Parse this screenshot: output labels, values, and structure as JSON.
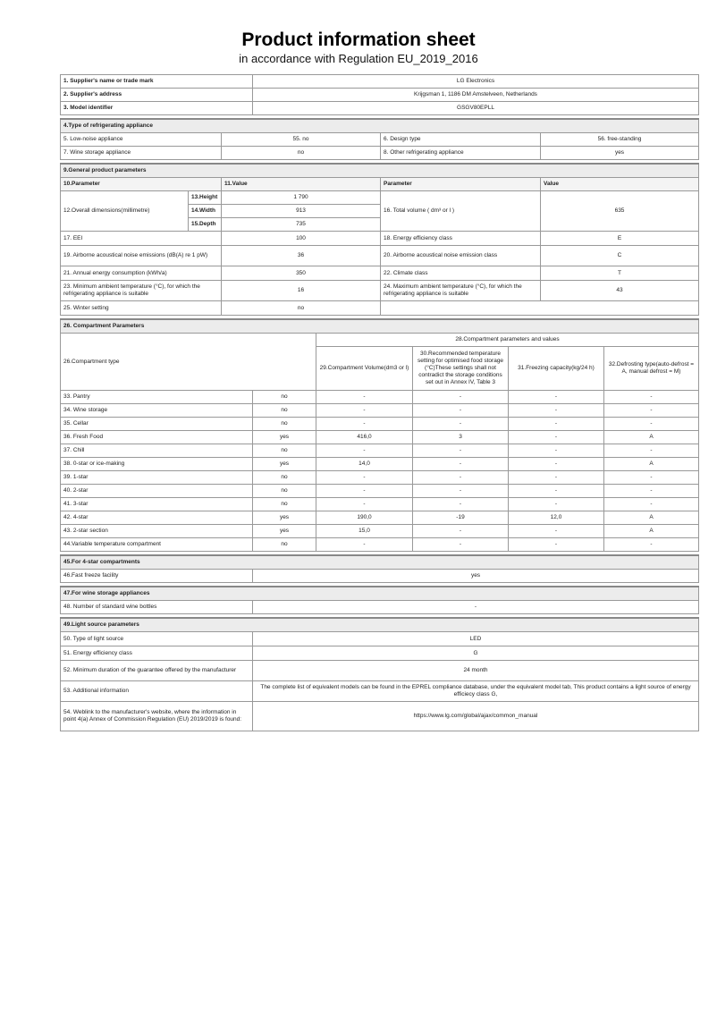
{
  "title": "Product information sheet",
  "subtitle": "in accordance with Regulation EU_2019_2016",
  "supplier": [
    {
      "label": "1. Supplier's name or trade mark",
      "value": "LG Electronics"
    },
    {
      "label": "2. Supplier's address",
      "value": "Krijgsman 1, 1186 DM Amstelveen, Netherlands"
    },
    {
      "label": "3. Model identifier",
      "value": "GSGV80EPLL"
    }
  ],
  "type_section": {
    "title": "4.Type of refrigerating appliance",
    "rows": [
      [
        "5. Low-noise appliance",
        "55. no",
        "6. Design type",
        "56. free-standing"
      ],
      [
        "7. Wine storage appliance",
        "no",
        "8. Other refrigerating appliance",
        "yes"
      ]
    ]
  },
  "general": {
    "title": "9.General product parameters",
    "headers": [
      "10.Parameter",
      "11.Value",
      "Parameter",
      "Value"
    ],
    "dims_label": "12.Overall dimensions(millimetre)",
    "dims": [
      [
        "13.Height",
        "1 790"
      ],
      [
        "14.Width",
        "913"
      ],
      [
        "15.Depth",
        "735"
      ]
    ],
    "volume_label": "16. Total volume ( dm³ or l )",
    "volume_value": "635",
    "rows": [
      [
        "17. EEI",
        "100",
        "18. Energy efficiency class",
        "E"
      ],
      [
        "19. Airborne acoustical noise emissions (dB(A) re 1 pW)",
        "36",
        "20. Airborne acoustical noise emission class",
        "C"
      ],
      [
        "21. Annual energy consumption (kWh/a)",
        "350",
        "22. Climate class",
        "T"
      ],
      [
        "23. Minimum ambient temperature (°C), for which the refrigerating appliance is suitable",
        "16",
        "24. Maximum ambient temperature (°C), for which the refrigerating appliance is suitable",
        "43"
      ],
      [
        "25. Winter setting",
        "no",
        "",
        ""
      ]
    ]
  },
  "compartments": {
    "title": "26. Compartment Parameters",
    "type_label": "26.Compartment type",
    "group_label": "28.Compartment parameters and values",
    "headers": [
      "29.Compartment Volume(dm3 or l)",
      "30.Recommended temperature setting for optimised food storage (°C)These settings shall not contradict the storage conditions set out in Annex IV, Table 3",
      "31.Freezing capacity(kg/24 h)",
      "32.Defrosting type(auto-defrost = A, manual defrost = M)"
    ],
    "rows": [
      [
        "33. Pantry",
        "no",
        "-",
        "-",
        "-",
        "-"
      ],
      [
        "34. Wine storage",
        "no",
        "-",
        "-",
        "-",
        "-"
      ],
      [
        "35. Cellar",
        "no",
        "-",
        "-",
        "-",
        "-"
      ],
      [
        "36. Fresh Food",
        "yes",
        "416,0",
        "3",
        "-",
        "A"
      ],
      [
        "37. Chill",
        "no",
        "-",
        "-",
        "-",
        "-"
      ],
      [
        "38. 0-star or ice-making",
        "yes",
        "14,0",
        "-",
        "-",
        "A"
      ],
      [
        "39. 1-star",
        "no",
        "-",
        "-",
        "-",
        "-"
      ],
      [
        "40. 2-star",
        "no",
        "-",
        "-",
        "-",
        "-"
      ],
      [
        "41. 3-star",
        "no",
        "-",
        "-",
        "-",
        "-"
      ],
      [
        "42. 4-star",
        "yes",
        "190,0",
        "-19",
        "12,0",
        "A"
      ],
      [
        "43. 2-star section",
        "yes",
        "15,0",
        "-",
        "-",
        "A"
      ],
      [
        "44.Variable temperature compartment",
        "no",
        "-",
        "-",
        "-",
        "-"
      ]
    ]
  },
  "misc": [
    {
      "section": "45.For 4-star compartments",
      "label": "46.Fast freeze facility",
      "value": "yes"
    },
    {
      "section": "47.For wine storage appliances",
      "label": "48. Number of standard wine bottles",
      "value": "-"
    }
  ],
  "light": {
    "title": "49.Light source parameters",
    "rows": [
      [
        "50. Type of light source",
        "LED"
      ],
      [
        "51. Energy efficiency class",
        "G"
      ],
      [
        "52. Minimum duration of the guarantee offered by the manufacturer",
        "24 month"
      ],
      [
        "53. Additional information",
        "The complete list of equivalent models can be found in the EPREL compliance database, under the equivalent model tab, This product contains a light source of energy efficiecy class G,"
      ],
      [
        "54. Weblink to the manufacturer's website, where the information in point 4(a) Annex of Commission Regulation (EU) 2019/2019 is found:",
        "https://www.lg.com/global/ajax/common_manual"
      ]
    ]
  }
}
